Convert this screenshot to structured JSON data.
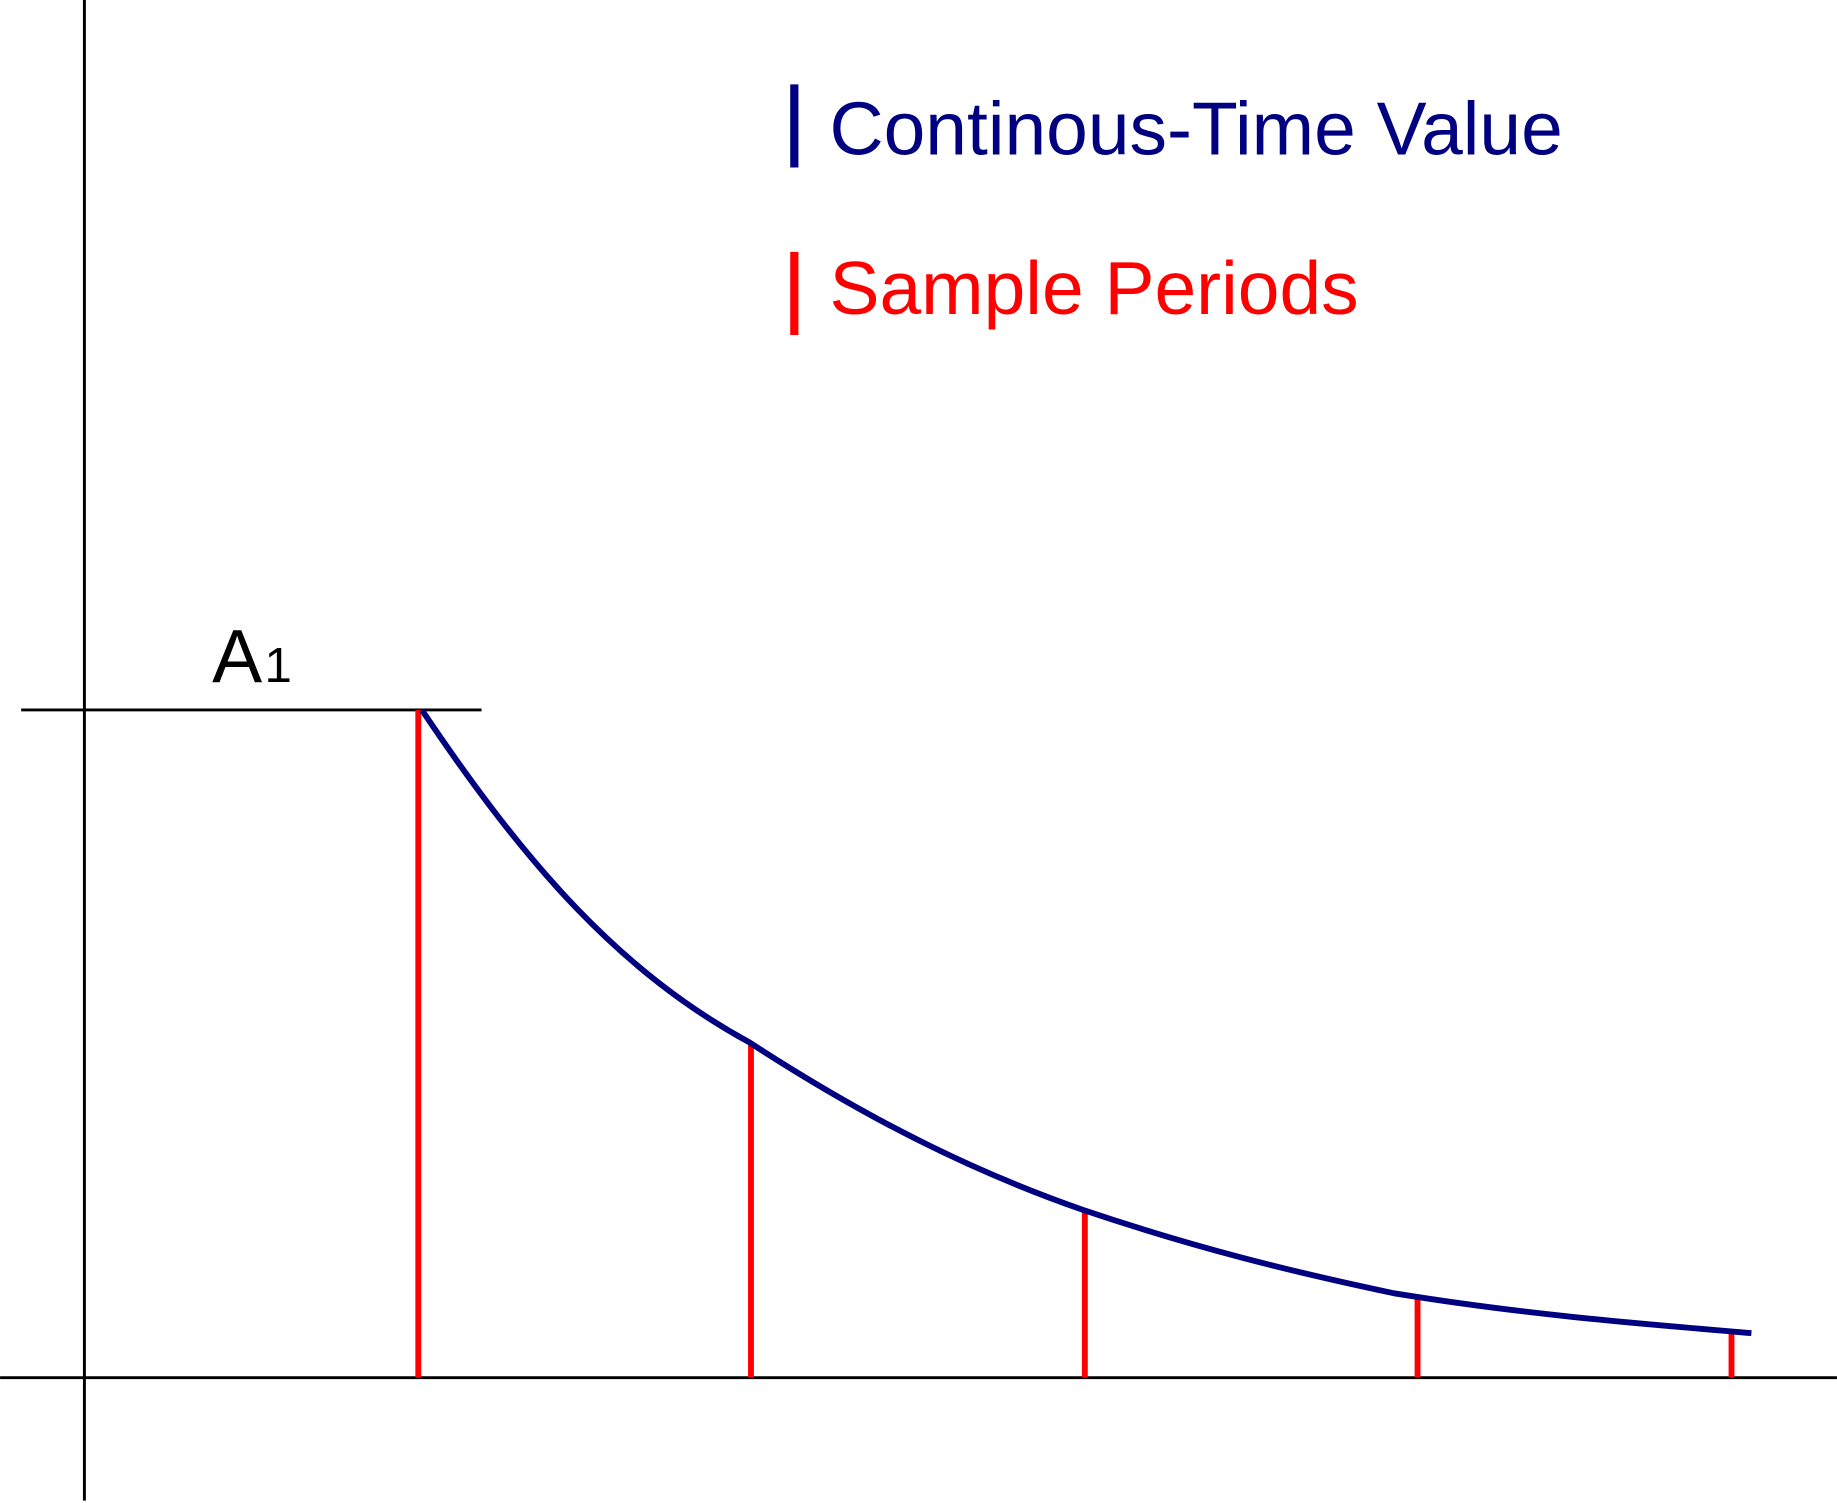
{
  "legend": {
    "items": [
      {
        "label": "Continous-Time Value"
      },
      {
        "label": "Sample Periods"
      }
    ]
  },
  "annotation": {
    "text": "A",
    "subscript": "1"
  }
}
